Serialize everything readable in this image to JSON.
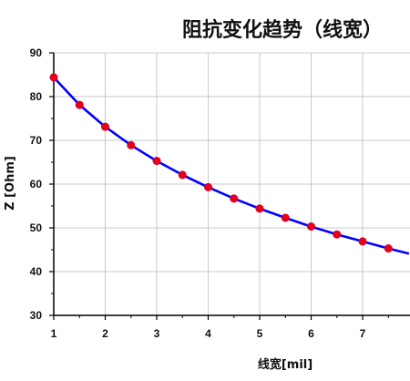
{
  "chart_data": {
    "type": "line",
    "title": "阻抗变化趋势（线宽）",
    "xlabel": "线宽[mil]",
    "ylabel": "Z [Ohm]",
    "xlim": [
      1,
      7.9
    ],
    "ylim": [
      30,
      90
    ],
    "x_ticks": [
      "1",
      "2",
      "3",
      "4",
      "5",
      "6",
      "7"
    ],
    "y_ticks": [
      "30",
      "40",
      "50",
      "60",
      "70",
      "80",
      "90"
    ],
    "grid": true,
    "series": [
      {
        "x": [
          1,
          1.5,
          2,
          2.5,
          3,
          3.5,
          4,
          4.5,
          5,
          5.5,
          6,
          6.5,
          7,
          7.5
        ],
        "y": [
          84.4,
          78.1,
          73.1,
          68.9,
          65.3,
          62.1,
          59.3,
          56.7,
          54.4,
          52.3,
          50.3,
          48.5,
          46.9,
          45.3
        ],
        "line_color": "#0000ff",
        "marker_color": "#e8001a"
      }
    ],
    "curve_end": {
      "x": 7.9,
      "y": 44.1
    }
  }
}
